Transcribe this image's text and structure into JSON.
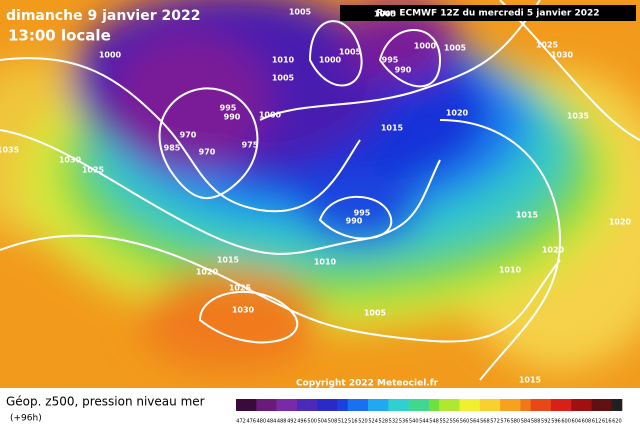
{
  "header": {
    "date": "dimanche 9 janvier 2022",
    "time": "13:00 locale",
    "run": "Run ECMWF 12Z du mercredi 5 janvier 2022"
  },
  "map": {
    "isobar_labels": [
      "1005",
      "1005",
      "1000",
      "1010",
      "1005",
      "1005",
      "1000",
      "995",
      "990",
      "1000",
      "1005",
      "1025",
      "1030",
      "995",
      "990",
      "1000",
      "970",
      "975",
      "985",
      "970",
      "1015",
      "1020",
      "1035",
      "1035",
      "1030",
      "1025",
      "995",
      "990",
      "1015",
      "1020",
      "1020",
      "1015",
      "1010",
      "1020",
      "1025",
      "1010",
      "1030",
      "1005",
      "1015"
    ],
    "copyright": "Copyright 2022 Meteociel.fr"
  },
  "legend": {
    "title": "Géop. z500, pression niveau mer",
    "lead": "(+96h)",
    "ticks": [
      472,
      476,
      480,
      484,
      488,
      492,
      496,
      500,
      504,
      508,
      512,
      516,
      520,
      524,
      528,
      532,
      536,
      540,
      544,
      548,
      552,
      556,
      560,
      564,
      568,
      572,
      576,
      580,
      584,
      588,
      592,
      596,
      600,
      604,
      608,
      612,
      616,
      620
    ]
  }
}
